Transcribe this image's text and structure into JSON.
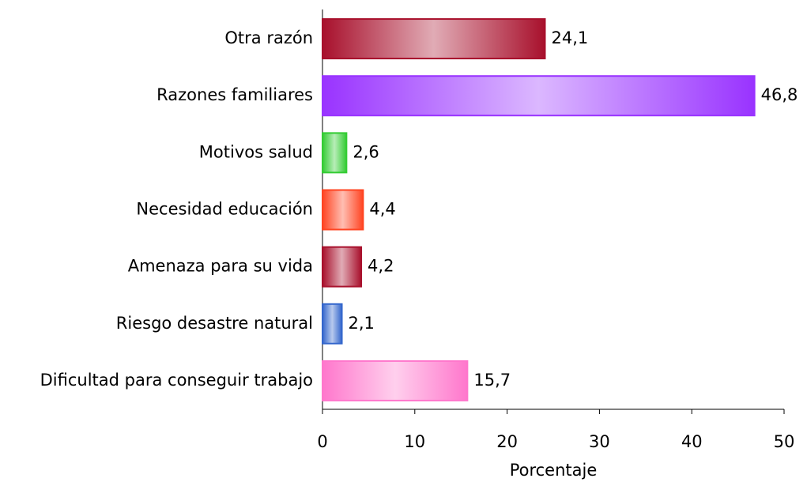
{
  "chart_data": {
    "type": "bar",
    "orientation": "horizontal",
    "categories": [
      "Otra razón",
      "Razones familiares",
      "Motivos salud",
      "Necesidad educación",
      "Amenaza para su vida",
      "Riesgo desastre natural",
      "Dificultad para conseguir trabajo"
    ],
    "values": [
      24.1,
      46.8,
      2.6,
      4.4,
      4.2,
      2.1,
      15.7
    ],
    "value_labels": [
      "24,1",
      "46,8",
      "2,6",
      "4,4",
      "4,2",
      "2,1",
      "15,7"
    ],
    "colors": [
      "#a8102c",
      "#9933ff",
      "#33cc33",
      "#ff4422",
      "#a8102c",
      "#3366cc",
      "#ff77cc"
    ],
    "xlabel": "Porcentaje",
    "xlim": [
      0,
      50
    ],
    "xticks": [
      0,
      10,
      20,
      30,
      40,
      50
    ],
    "grid": false
  }
}
